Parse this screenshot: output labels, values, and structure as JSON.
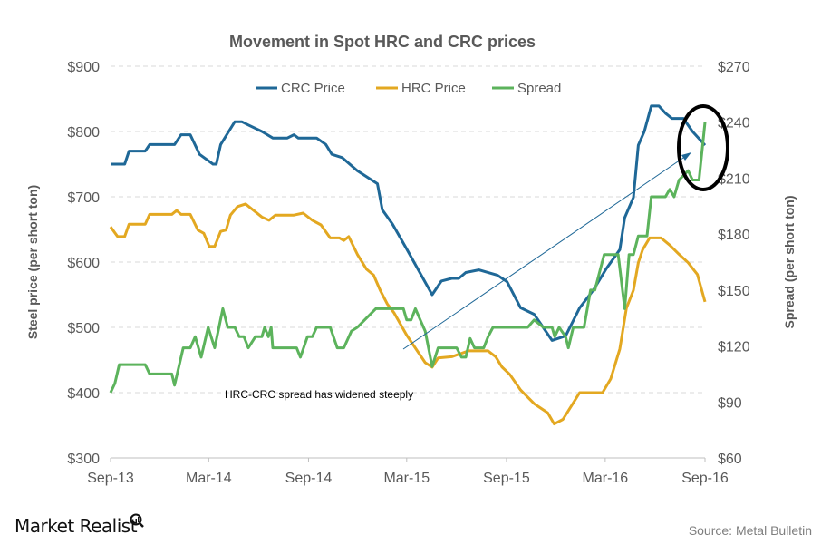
{
  "chart_data": {
    "type": "line",
    "title": "Movement in Spot HRC and CRC prices",
    "ylabel": "Steel price (per short ton)",
    "y2label": "Spread (per short ton)",
    "ylim": [
      300,
      900
    ],
    "y2lim": [
      60,
      270
    ],
    "yticks": [
      "$900",
      "$800",
      "$700",
      "$600",
      "$500",
      "$400",
      "$300"
    ],
    "y2ticks": [
      "$270",
      "$240",
      "$210",
      "$180",
      "$150",
      "$120",
      "$90",
      "$60"
    ],
    "xlim": [
      "2013-09-01",
      "2016-09-01"
    ],
    "xticks": [
      "Sep-13",
      "Mar-14",
      "Sep-14",
      "Mar-15",
      "Sep-15",
      "Mar-16",
      "Sep-16"
    ],
    "xtick_dates": [
      "2013-09-01",
      "2014-03-01",
      "2014-09-01",
      "2015-03-01",
      "2015-09-01",
      "2016-03-01",
      "2016-09-01"
    ],
    "grid": true,
    "legend_position": "top-center",
    "series": [
      {
        "name": "CRC Price",
        "axis": "left",
        "color": "#1f6897",
        "points": [
          [
            "2013-09-01",
            750
          ],
          [
            "2013-09-27",
            750
          ],
          [
            "2013-10-05",
            770
          ],
          [
            "2013-11-04",
            770
          ],
          [
            "2013-11-12",
            780
          ],
          [
            "2013-12-28",
            780
          ],
          [
            "2014-01-09",
            795
          ],
          [
            "2014-01-26",
            795
          ],
          [
            "2014-02-12",
            765
          ],
          [
            "2014-03-09",
            750
          ],
          [
            "2014-03-15",
            750
          ],
          [
            "2014-03-23",
            780
          ],
          [
            "2014-04-18",
            815
          ],
          [
            "2014-05-01",
            815
          ],
          [
            "2014-05-13",
            810
          ],
          [
            "2014-06-07",
            800
          ],
          [
            "2014-06-27",
            790
          ],
          [
            "2014-07-24",
            790
          ],
          [
            "2014-08-05",
            795
          ],
          [
            "2014-08-13",
            790
          ],
          [
            "2014-09-16",
            790
          ],
          [
            "2014-10-03",
            780
          ],
          [
            "2014-10-14",
            765
          ],
          [
            "2014-11-02",
            760
          ],
          [
            "2014-11-30",
            740
          ],
          [
            "2015-01-06",
            720
          ],
          [
            "2015-01-15",
            680
          ],
          [
            "2015-02-03",
            658
          ],
          [
            "2015-03-01",
            620
          ],
          [
            "2015-04-17",
            550
          ],
          [
            "2015-05-04",
            571
          ],
          [
            "2015-05-23",
            575
          ],
          [
            "2015-06-05",
            575
          ],
          [
            "2015-06-18",
            584
          ],
          [
            "2015-07-12",
            588
          ],
          [
            "2015-08-15",
            580
          ],
          [
            "2015-09-02",
            570
          ],
          [
            "2015-09-27",
            530
          ],
          [
            "2015-10-22",
            520
          ],
          [
            "2015-11-24",
            480
          ],
          [
            "2015-12-19",
            487
          ],
          [
            "2016-01-14",
            530
          ],
          [
            "2016-02-08",
            557
          ],
          [
            "2016-03-03",
            590
          ],
          [
            "2016-03-28",
            619
          ],
          [
            "2016-04-06",
            668
          ],
          [
            "2016-04-22",
            699
          ],
          [
            "2016-05-01",
            779
          ],
          [
            "2016-05-12",
            800
          ],
          [
            "2016-05-25",
            839
          ],
          [
            "2016-06-08",
            839
          ],
          [
            "2016-06-20",
            828
          ],
          [
            "2016-07-02",
            820
          ],
          [
            "2016-07-23",
            820
          ],
          [
            "2016-08-09",
            800
          ],
          [
            "2016-09-01",
            779
          ]
        ]
      },
      {
        "name": "HRC Price",
        "axis": "left",
        "color": "#e3a821",
        "points": [
          [
            "2013-09-01",
            654
          ],
          [
            "2013-09-14",
            639
          ],
          [
            "2013-09-27",
            639
          ],
          [
            "2013-10-05",
            658
          ],
          [
            "2013-11-04",
            658
          ],
          [
            "2013-11-12",
            673
          ],
          [
            "2013-12-23",
            673
          ],
          [
            "2014-01-01",
            679
          ],
          [
            "2014-01-09",
            673
          ],
          [
            "2014-01-26",
            673
          ],
          [
            "2014-02-09",
            649
          ],
          [
            "2014-02-20",
            644
          ],
          [
            "2014-03-02",
            624
          ],
          [
            "2014-03-12",
            624
          ],
          [
            "2014-03-23",
            647
          ],
          [
            "2014-04-02",
            649
          ],
          [
            "2014-04-10",
            672
          ],
          [
            "2014-04-23",
            685
          ],
          [
            "2014-05-08",
            689
          ],
          [
            "2014-06-07",
            669
          ],
          [
            "2014-06-20",
            664
          ],
          [
            "2014-07-02",
            672
          ],
          [
            "2014-08-05",
            672
          ],
          [
            "2014-08-22",
            675
          ],
          [
            "2014-09-08",
            664
          ],
          [
            "2014-09-24",
            657
          ],
          [
            "2014-10-11",
            637
          ],
          [
            "2014-10-28",
            637
          ],
          [
            "2014-11-05",
            633
          ],
          [
            "2014-11-14",
            639
          ],
          [
            "2014-11-30",
            612
          ],
          [
            "2014-12-17",
            589
          ],
          [
            "2014-12-30",
            580
          ],
          [
            "2015-01-11",
            557
          ],
          [
            "2015-01-24",
            536
          ],
          [
            "2015-02-06",
            522
          ],
          [
            "2015-03-01",
            488
          ],
          [
            "2015-04-04",
            446
          ],
          [
            "2015-04-17",
            439
          ],
          [
            "2015-04-28",
            453
          ],
          [
            "2015-05-23",
            455
          ],
          [
            "2015-06-23",
            464
          ],
          [
            "2015-07-29",
            464
          ],
          [
            "2015-08-12",
            455
          ],
          [
            "2015-08-24",
            439
          ],
          [
            "2015-09-07",
            428
          ],
          [
            "2015-09-27",
            404
          ],
          [
            "2015-10-22",
            383
          ],
          [
            "2015-11-16",
            369
          ],
          [
            "2015-11-28",
            352
          ],
          [
            "2015-12-14",
            359
          ],
          [
            "2016-01-14",
            400
          ],
          [
            "2016-02-25",
            400
          ],
          [
            "2016-03-11",
            421
          ],
          [
            "2016-03-28",
            467
          ],
          [
            "2016-04-09",
            529
          ],
          [
            "2016-04-22",
            557
          ],
          [
            "2016-05-01",
            599
          ],
          [
            "2016-05-09",
            619
          ],
          [
            "2016-05-22",
            637
          ],
          [
            "2016-06-12",
            637
          ],
          [
            "2016-06-28",
            626
          ],
          [
            "2016-07-15",
            612
          ],
          [
            "2016-08-01",
            599
          ],
          [
            "2016-08-18",
            581
          ],
          [
            "2016-09-01",
            539
          ]
        ]
      },
      {
        "name": "Spread",
        "axis": "right",
        "color": "#5cb35c",
        "points": [
          [
            "2013-09-01",
            95
          ],
          [
            "2013-09-09",
            100
          ],
          [
            "2013-09-17",
            110
          ],
          [
            "2013-11-04",
            110
          ],
          [
            "2013-11-12",
            105
          ],
          [
            "2013-12-23",
            105
          ],
          [
            "2013-12-28",
            99
          ],
          [
            "2014-01-13",
            119
          ],
          [
            "2014-01-26",
            119
          ],
          [
            "2014-02-04",
            125
          ],
          [
            "2014-02-15",
            114
          ],
          [
            "2014-02-28",
            130
          ],
          [
            "2014-03-12",
            119
          ],
          [
            "2014-03-27",
            140
          ],
          [
            "2014-04-05",
            130
          ],
          [
            "2014-04-18",
            130
          ],
          [
            "2014-04-26",
            125
          ],
          [
            "2014-05-05",
            125
          ],
          [
            "2014-05-13",
            119
          ],
          [
            "2014-05-26",
            125
          ],
          [
            "2014-06-07",
            125
          ],
          [
            "2014-06-12",
            130
          ],
          [
            "2014-06-19",
            125
          ],
          [
            "2014-06-24",
            130
          ],
          [
            "2014-06-27",
            119
          ],
          [
            "2014-08-10",
            119
          ],
          [
            "2014-08-17",
            114
          ],
          [
            "2014-08-30",
            125
          ],
          [
            "2014-09-08",
            125
          ],
          [
            "2014-09-16",
            130
          ],
          [
            "2014-10-11",
            130
          ],
          [
            "2014-10-24",
            119
          ],
          [
            "2014-11-05",
            119
          ],
          [
            "2014-11-19",
            128
          ],
          [
            "2014-11-30",
            130
          ],
          [
            "2014-12-17",
            135
          ],
          [
            "2015-01-03",
            140
          ],
          [
            "2015-02-23",
            140
          ],
          [
            "2015-03-01",
            134
          ],
          [
            "2015-03-09",
            134
          ],
          [
            "2015-03-17",
            140
          ],
          [
            "2015-03-26",
            134
          ],
          [
            "2015-04-04",
            128
          ],
          [
            "2015-04-17",
            109
          ],
          [
            "2015-04-28",
            119
          ],
          [
            "2015-06-01",
            119
          ],
          [
            "2015-06-10",
            114
          ],
          [
            "2015-06-18",
            114
          ],
          [
            "2015-06-26",
            124
          ],
          [
            "2015-07-04",
            119
          ],
          [
            "2015-07-21",
            119
          ],
          [
            "2015-07-29",
            125
          ],
          [
            "2015-08-07",
            130
          ],
          [
            "2015-10-10",
            130
          ],
          [
            "2015-10-22",
            134
          ],
          [
            "2015-11-08",
            130
          ],
          [
            "2015-11-24",
            130
          ],
          [
            "2015-11-29",
            125
          ],
          [
            "2015-12-07",
            130
          ],
          [
            "2015-12-19",
            125
          ],
          [
            "2015-12-24",
            119
          ],
          [
            "2016-01-02",
            130
          ],
          [
            "2016-01-22",
            130
          ],
          [
            "2016-02-03",
            150
          ],
          [
            "2016-02-11",
            150
          ],
          [
            "2016-02-28",
            169
          ],
          [
            "2016-03-25",
            169
          ],
          [
            "2016-04-06",
            140
          ],
          [
            "2016-04-14",
            169
          ],
          [
            "2016-04-22",
            169
          ],
          [
            "2016-05-01",
            179
          ],
          [
            "2016-05-17",
            179
          ],
          [
            "2016-05-25",
            200
          ],
          [
            "2016-06-20",
            200
          ],
          [
            "2016-06-28",
            204
          ],
          [
            "2016-07-06",
            200
          ],
          [
            "2016-07-15",
            209
          ],
          [
            "2016-08-01",
            214
          ],
          [
            "2016-08-09",
            209
          ],
          [
            "2016-08-21",
            209
          ],
          [
            "2016-09-01",
            240
          ]
        ]
      }
    ],
    "annotations": [
      {
        "text": "HRC-CRC  spread has widened steeply"
      }
    ]
  },
  "footer": {
    "logo": "Market Realist",
    "source": "Source: Metal Bulletin"
  },
  "colors": {
    "crc": "#1f6897",
    "hrc": "#e3a821",
    "spread": "#5cb35c",
    "text": "#595959",
    "circle": "#000000"
  }
}
